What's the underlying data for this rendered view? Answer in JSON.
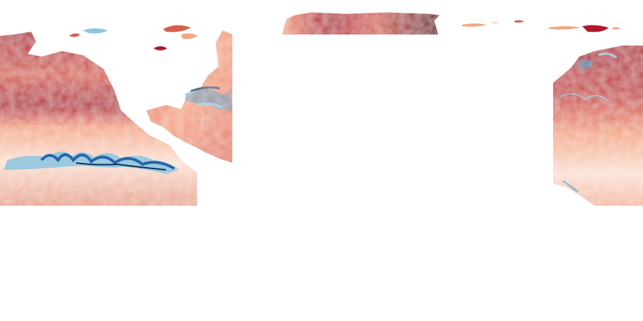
{
  "map": {
    "kind": "sea-surface-temperature-anomaly",
    "projection": "equirectangular",
    "palette": {
      "strong_warm": "#67000d",
      "warm": "#b2182b",
      "mild_warm": "#d6604d",
      "light_warm": "#f4a582",
      "pale_warm": "#fbe0d3",
      "neutral": "#f7f7f7",
      "pale_cool": "#d1e5f0",
      "cool": "#92c5de",
      "mild_cool": "#4393c3",
      "strong_cool": "#2166ac",
      "deep_cool": "#053061"
    },
    "background": "#ffffff",
    "rendered_regions": [
      "north-pacific",
      "eastern-tropical-pacific",
      "gulf-of-mexico-caribbean",
      "western-north-atlantic",
      "hudson-bay",
      "arctic-coastal-seas",
      "western-pacific"
    ],
    "features": [
      "equatorial-cold-tongue",
      "tropical-instability-waves"
    ],
    "land_color": "#ffffff"
  }
}
